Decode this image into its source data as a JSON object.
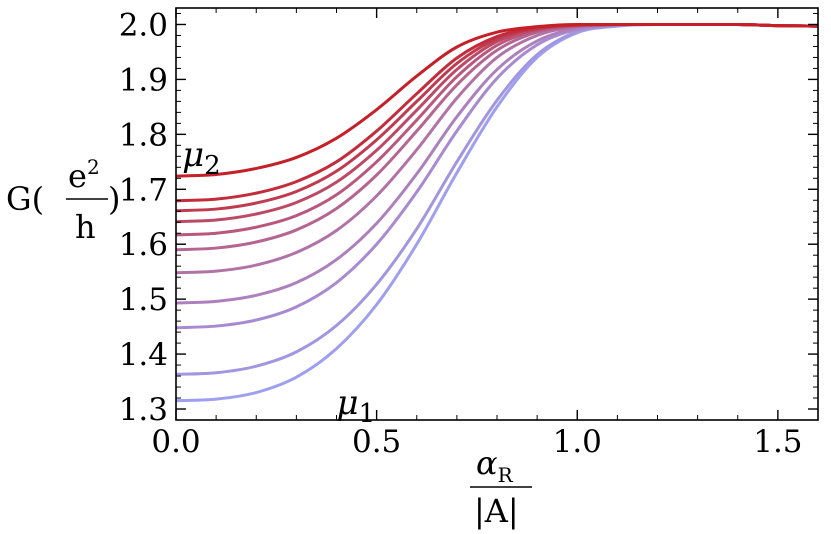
{
  "chart_data": {
    "type": "line",
    "title": "",
    "xlabel": {
      "numerator": "α",
      "numerator_sub": "R",
      "denominator": "|A|"
    },
    "ylabel": {
      "prefix": "G(",
      "numerator": "e",
      "numerator_sup": "2",
      "denominator": "h",
      "suffix": ")"
    },
    "xlim": [
      0,
      1.6
    ],
    "ylim": [
      1.28,
      2.03
    ],
    "xticks": [
      "0.0",
      "0.5",
      "1.0",
      "1.5"
    ],
    "yticks": [
      "1.3",
      "1.4",
      "1.5",
      "1.6",
      "1.7",
      "1.8",
      "1.9",
      "2.0"
    ],
    "grid": false,
    "x": [
      0.0,
      0.1,
      0.2,
      0.3,
      0.4,
      0.5,
      0.6,
      0.7,
      0.8,
      0.9,
      1.0,
      1.1,
      1.2,
      1.3,
      1.4,
      1.5,
      1.6
    ],
    "series": [
      {
        "color": "#9f9ff0",
        "values": [
          1.315,
          1.318,
          1.33,
          1.358,
          1.41,
          1.49,
          1.6,
          1.73,
          1.85,
          1.94,
          1.985,
          1.997,
          2.0,
          2.0,
          2.0,
          1.998,
          1.997
        ]
      },
      {
        "color": "#a396e0",
        "values": [
          1.363,
          1.366,
          1.378,
          1.404,
          1.452,
          1.527,
          1.628,
          1.75,
          1.862,
          1.945,
          1.987,
          1.998,
          2.0,
          2.0,
          2.0,
          1.998,
          1.997
        ]
      },
      {
        "color": "#a88ad0",
        "values": [
          1.448,
          1.451,
          1.462,
          1.486,
          1.53,
          1.6,
          1.695,
          1.806,
          1.902,
          1.963,
          1.991,
          1.999,
          2.0,
          2.0,
          2.0,
          1.998,
          1.997
        ]
      },
      {
        "color": "#ad80bd",
        "values": [
          1.493,
          1.496,
          1.507,
          1.53,
          1.572,
          1.638,
          1.728,
          1.832,
          1.918,
          1.97,
          1.993,
          1.999,
          2.0,
          2.0,
          2.0,
          1.998,
          1.997
        ]
      },
      {
        "color": "#b172a8",
        "values": [
          1.548,
          1.551,
          1.562,
          1.585,
          1.625,
          1.688,
          1.772,
          1.866,
          1.94,
          1.98,
          1.996,
          2.0,
          2.0,
          2.0,
          2.0,
          1.998,
          1.997
        ]
      },
      {
        "color": "#b56592",
        "values": [
          1.59,
          1.593,
          1.604,
          1.626,
          1.665,
          1.726,
          1.806,
          1.89,
          1.953,
          1.986,
          1.997,
          2.0,
          2.0,
          2.0,
          2.0,
          1.998,
          1.997
        ]
      },
      {
        "color": "#b9577c",
        "values": [
          1.617,
          1.62,
          1.631,
          1.652,
          1.69,
          1.75,
          1.826,
          1.905,
          1.962,
          1.989,
          1.998,
          2.0,
          2.0,
          2.0,
          2.0,
          1.998,
          1.997
        ]
      },
      {
        "color": "#bc4966",
        "values": [
          1.641,
          1.644,
          1.655,
          1.676,
          1.713,
          1.771,
          1.844,
          1.918,
          1.969,
          1.991,
          1.999,
          2.0,
          2.0,
          2.0,
          2.0,
          1.998,
          1.997
        ]
      },
      {
        "color": "#c03b50",
        "values": [
          1.661,
          1.664,
          1.675,
          1.696,
          1.733,
          1.79,
          1.86,
          1.929,
          1.974,
          1.993,
          1.999,
          2.0,
          2.0,
          2.0,
          2.0,
          1.998,
          1.997
        ]
      },
      {
        "color": "#c32c3a",
        "values": [
          1.679,
          1.682,
          1.693,
          1.714,
          1.75,
          1.806,
          1.874,
          1.939,
          1.978,
          1.994,
          1.999,
          2.0,
          2.0,
          2.0,
          2.0,
          1.998,
          1.997
        ]
      },
      {
        "color": "#c51f28",
        "values": [
          1.724,
          1.727,
          1.738,
          1.758,
          1.793,
          1.845,
          1.906,
          1.959,
          1.986,
          1.996,
          2.0,
          2.0,
          2.0,
          2.0,
          2.0,
          1.998,
          1.997
        ]
      }
    ],
    "annotations": [
      {
        "text": "μ",
        "sub": "2",
        "x": 0.05,
        "y": 1.775
      },
      {
        "text": "μ",
        "sub": "1",
        "x": 0.4,
        "y": 1.32
      }
    ]
  }
}
